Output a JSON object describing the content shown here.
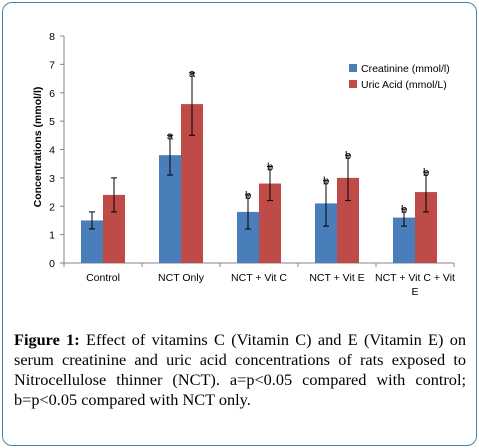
{
  "chart_data": {
    "type": "bar",
    "title": "",
    "xlabel": "",
    "ylabel": "Concentrations (mmol/l)",
    "ylim": [
      0,
      8
    ],
    "yticks": [
      0,
      1,
      2,
      3,
      4,
      5,
      6,
      7,
      8
    ],
    "categories": [
      "Control",
      "NCT Only",
      "NCT + Vit C",
      "NCT + Vit E",
      "NCT + Vit C + Vit E"
    ],
    "category_lines": [
      [
        "Control"
      ],
      [
        "NCT Only"
      ],
      [
        "NCT + Vit C"
      ],
      [
        "NCT + Vit E"
      ],
      [
        "NCT + Vit C + Vit",
        "E"
      ]
    ],
    "legend_position": "right",
    "grid": false,
    "series": [
      {
        "name": "Creatinine (mmol/l)",
        "color": "#4a7ebb",
        "values": [
          1.5,
          3.8,
          1.8,
          2.1,
          1.6
        ],
        "errors": [
          0.3,
          0.7,
          0.6,
          0.8,
          0.3
        ],
        "annotations": [
          "",
          "a",
          "b",
          "b",
          "b"
        ]
      },
      {
        "name": "Uric Acid (mmol/L)",
        "color": "#be4b48",
        "values": [
          2.4,
          5.6,
          2.8,
          3.0,
          2.5
        ],
        "errors": [
          0.6,
          1.1,
          0.6,
          0.8,
          0.7
        ],
        "annotations": [
          "",
          "a",
          "b",
          "b",
          "b"
        ]
      }
    ]
  },
  "caption": {
    "label": "Figure 1:",
    "text": " Effect of vitamins C (Vitamin C) and E (Vitamin E) on serum creatinine and uric acid concentrations of rats exposed to Nitrocellulose thinner (NCT). a=p<0.05 compared with control; b=p<0.05 compared with NCT only."
  }
}
